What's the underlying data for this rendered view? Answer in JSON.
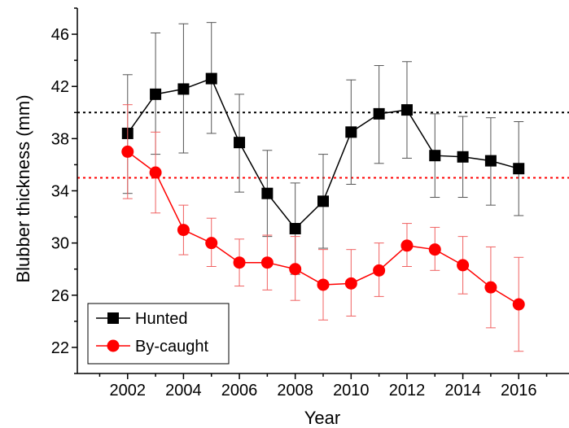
{
  "chart_data": {
    "type": "line",
    "xlabel": "Year",
    "ylabel": "Blubber thickness (mm)",
    "xlim": [
      2000.2,
      2017.8
    ],
    "ylim": [
      20,
      48
    ],
    "x_ticks": [
      2002,
      2004,
      2006,
      2008,
      2010,
      2012,
      2014,
      2016
    ],
    "y_ticks": [
      22,
      26,
      30,
      34,
      38,
      42,
      46
    ],
    "x_tick_labels": [
      "2002",
      "2004",
      "2006",
      "2008",
      "2010",
      "2012",
      "2014",
      "2016"
    ],
    "y_tick_labels": [
      "22",
      "26",
      "30",
      "34",
      "38",
      "42",
      "46"
    ],
    "legend_placement": "bottom-left",
    "grid": false,
    "reference_lines": [
      {
        "y": 40,
        "color": "#000000",
        "style": "dotted"
      },
      {
        "y": 35,
        "color": "#ff0000",
        "style": "dotted"
      }
    ],
    "series": [
      {
        "name": "Hunted",
        "marker": "square",
        "color": "#000000",
        "x": [
          2002,
          2003,
          2004,
          2005,
          2006,
          2007,
          2008,
          2009,
          2010,
          2011,
          2012,
          2013,
          2014,
          2015,
          2016
        ],
        "y": [
          38.4,
          41.4,
          41.8,
          42.6,
          37.7,
          33.8,
          31.1,
          33.2,
          38.5,
          39.9,
          40.2,
          36.7,
          36.6,
          36.3,
          35.7
        ],
        "err_low": [
          33.8,
          36.8,
          36.9,
          38.4,
          33.9,
          30.5,
          27.6,
          29.6,
          34.5,
          36.1,
          36.5,
          33.5,
          33.5,
          32.9,
          32.1
        ],
        "err_high": [
          42.9,
          46.1,
          46.8,
          46.9,
          41.4,
          37.1,
          34.6,
          36.8,
          42.5,
          43.6,
          43.9,
          39.9,
          39.7,
          39.6,
          39.3
        ]
      },
      {
        "name": "By-caught",
        "marker": "circle",
        "color": "#ff0000",
        "x": [
          2002,
          2003,
          2004,
          2005,
          2006,
          2007,
          2008,
          2009,
          2010,
          2011,
          2012,
          2013,
          2014,
          2015,
          2016
        ],
        "y": [
          37.0,
          35.4,
          31.0,
          30.0,
          28.5,
          28.5,
          28.0,
          26.8,
          26.9,
          27.9,
          29.8,
          29.5,
          28.3,
          26.6,
          25.3
        ],
        "err_low": [
          33.4,
          32.3,
          29.1,
          28.2,
          26.7,
          26.4,
          25.6,
          24.1,
          24.4,
          25.9,
          28.2,
          27.9,
          26.1,
          23.5,
          21.7
        ],
        "err_high": [
          40.6,
          38.5,
          32.9,
          31.9,
          30.3,
          30.6,
          30.5,
          29.5,
          29.5,
          30.0,
          31.5,
          31.2,
          30.5,
          29.7,
          28.9
        ]
      }
    ]
  }
}
